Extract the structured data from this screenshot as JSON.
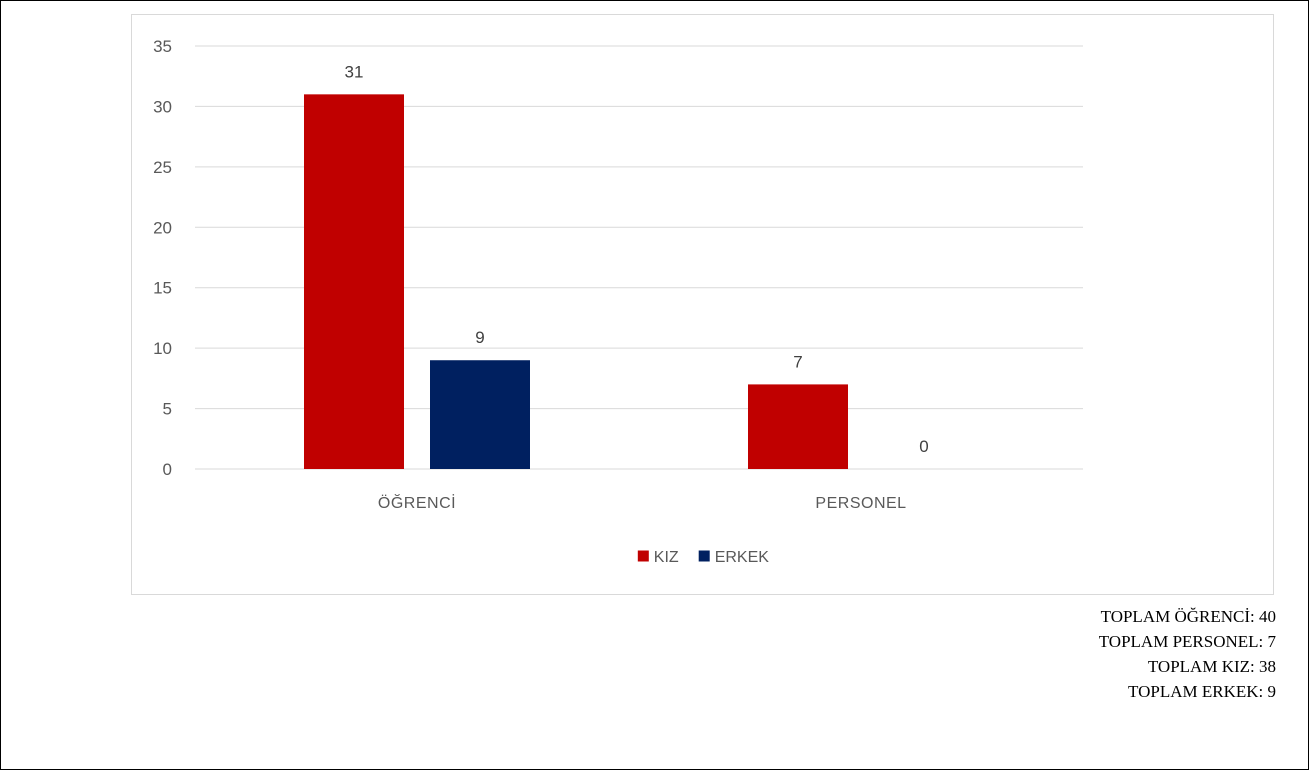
{
  "chart_data": {
    "type": "bar",
    "categories": [
      "ÖĞRENCİ",
      "PERSONEL"
    ],
    "series": [
      {
        "name": "KIZ",
        "values": [
          31,
          7
        ],
        "color": "#c00000"
      },
      {
        "name": "ERKEK",
        "values": [
          9,
          0
        ],
        "color": "#002060"
      }
    ],
    "ylim": [
      0,
      35
    ],
    "yticks": [
      0,
      5,
      10,
      15,
      20,
      25,
      30,
      35
    ],
    "grid": true,
    "data_labels": true,
    "legend_position": "bottom"
  },
  "totals": {
    "ogrenci": "TOPLAM ÖĞRENCİ: 40",
    "personel": "TOPLAM PERSONEL: 7",
    "kiz": "TOPLAM KIZ: 38",
    "erkek": "TOPLAM ERKEK: 9"
  }
}
